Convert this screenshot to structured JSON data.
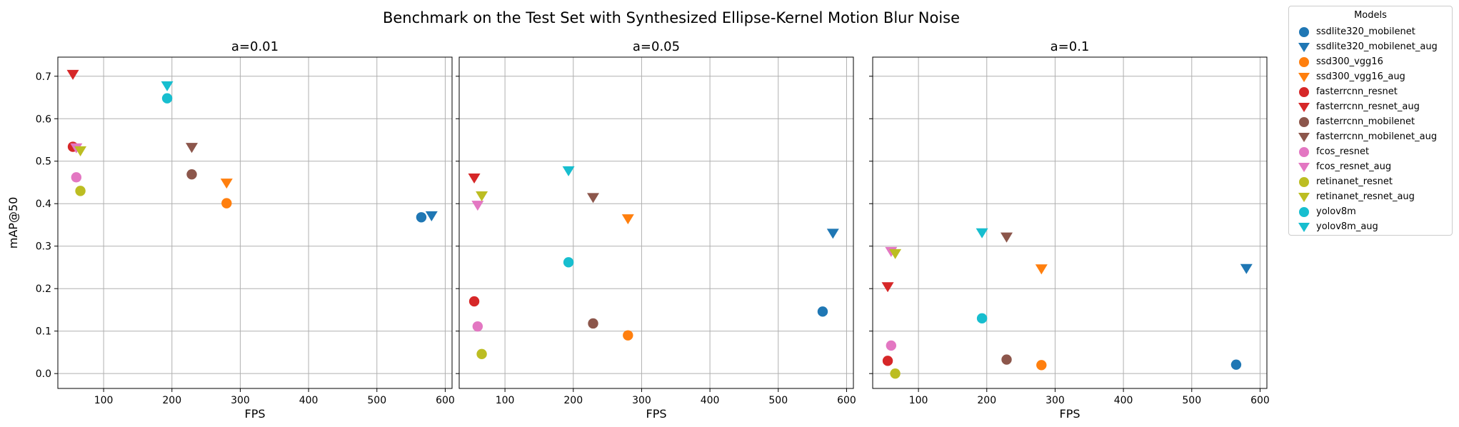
{
  "figure": {
    "title": "Benchmark on the Test Set with Synthesized Ellipse-Kernel Motion Blur Noise"
  },
  "chart_data": [
    {
      "type": "scatter",
      "title": "a=0.01",
      "xlabel": "FPS",
      "ylabel": "mAP@50",
      "xlim": [
        33,
        610
      ],
      "ylim": [
        -0.035,
        0.745
      ],
      "xticks": [
        100,
        200,
        300,
        400,
        500,
        600
      ],
      "yticks": [
        0.0,
        0.1,
        0.2,
        0.3,
        0.4,
        0.5,
        0.6,
        0.7
      ],
      "grid": true,
      "series": [
        {
          "name": "ssdlite320_mobilenet",
          "x": 565,
          "y": 0.368
        },
        {
          "name": "ssdlite320_mobilenet_aug",
          "x": 580,
          "y": 0.372
        },
        {
          "name": "ssd300_vgg16",
          "x": 280,
          "y": 0.401
        },
        {
          "name": "ssd300_vgg16_aug",
          "x": 280,
          "y": 0.449
        },
        {
          "name": "fasterrcnn_resnet",
          "x": 55,
          "y": 0.534
        },
        {
          "name": "fasterrcnn_resnet_aug",
          "x": 55,
          "y": 0.705
        },
        {
          "name": "fasterrcnn_mobilenet",
          "x": 229,
          "y": 0.469
        },
        {
          "name": "fasterrcnn_mobilenet_aug",
          "x": 229,
          "y": 0.533
        },
        {
          "name": "fcos_resnet",
          "x": 60,
          "y": 0.462
        },
        {
          "name": "fcos_resnet_aug",
          "x": 60,
          "y": 0.532
        },
        {
          "name": "retinanet_resnet",
          "x": 66,
          "y": 0.43
        },
        {
          "name": "retinanet_resnet_aug",
          "x": 66,
          "y": 0.525
        },
        {
          "name": "yolov8m",
          "x": 193,
          "y": 0.648
        },
        {
          "name": "yolov8m_aug",
          "x": 193,
          "y": 0.678
        }
      ]
    },
    {
      "type": "scatter",
      "title": "a=0.05",
      "xlabel": "FPS",
      "ylabel": "",
      "xlim": [
        33,
        610
      ],
      "ylim": [
        -0.035,
        0.745
      ],
      "xticks": [
        100,
        200,
        300,
        400,
        500,
        600
      ],
      "yticks": [
        0.0,
        0.1,
        0.2,
        0.3,
        0.4,
        0.5,
        0.6,
        0.7
      ],
      "grid": true,
      "series": [
        {
          "name": "ssdlite320_mobilenet",
          "x": 565,
          "y": 0.146
        },
        {
          "name": "ssdlite320_mobilenet_aug",
          "x": 580,
          "y": 0.331
        },
        {
          "name": "ssd300_vgg16",
          "x": 280,
          "y": 0.09
        },
        {
          "name": "ssd300_vgg16_aug",
          "x": 280,
          "y": 0.365
        },
        {
          "name": "fasterrcnn_resnet",
          "x": 55,
          "y": 0.17
        },
        {
          "name": "fasterrcnn_resnet_aug",
          "x": 55,
          "y": 0.461
        },
        {
          "name": "fasterrcnn_mobilenet",
          "x": 229,
          "y": 0.118
        },
        {
          "name": "fasterrcnn_mobilenet_aug",
          "x": 229,
          "y": 0.415
        },
        {
          "name": "fcos_resnet",
          "x": 60,
          "y": 0.111
        },
        {
          "name": "fcos_resnet_aug",
          "x": 60,
          "y": 0.397
        },
        {
          "name": "retinanet_resnet",
          "x": 66,
          "y": 0.046
        },
        {
          "name": "retinanet_resnet_aug",
          "x": 66,
          "y": 0.419
        },
        {
          "name": "yolov8m",
          "x": 193,
          "y": 0.262
        },
        {
          "name": "yolov8m_aug",
          "x": 193,
          "y": 0.478
        }
      ]
    },
    {
      "type": "scatter",
      "title": "a=0.1",
      "xlabel": "FPS",
      "ylabel": "",
      "xlim": [
        33,
        610
      ],
      "ylim": [
        -0.035,
        0.745
      ],
      "xticks": [
        100,
        200,
        300,
        400,
        500,
        600
      ],
      "yticks": [
        0.0,
        0.1,
        0.2,
        0.3,
        0.4,
        0.5,
        0.6,
        0.7
      ],
      "grid": true,
      "series": [
        {
          "name": "ssdlite320_mobilenet",
          "x": 565,
          "y": 0.021
        },
        {
          "name": "ssdlite320_mobilenet_aug",
          "x": 580,
          "y": 0.248
        },
        {
          "name": "ssd300_vgg16",
          "x": 280,
          "y": 0.02
        },
        {
          "name": "ssd300_vgg16_aug",
          "x": 280,
          "y": 0.247
        },
        {
          "name": "fasterrcnn_resnet",
          "x": 55,
          "y": 0.03
        },
        {
          "name": "fasterrcnn_resnet_aug",
          "x": 55,
          "y": 0.205
        },
        {
          "name": "fasterrcnn_mobilenet",
          "x": 229,
          "y": 0.033
        },
        {
          "name": "fasterrcnn_mobilenet_aug",
          "x": 229,
          "y": 0.322
        },
        {
          "name": "fcos_resnet",
          "x": 60,
          "y": 0.066
        },
        {
          "name": "fcos_resnet_aug",
          "x": 60,
          "y": 0.288
        },
        {
          "name": "retinanet_resnet",
          "x": 66,
          "y": 0.0
        },
        {
          "name": "retinanet_resnet_aug",
          "x": 66,
          "y": 0.283
        },
        {
          "name": "yolov8m",
          "x": 193,
          "y": 0.13
        },
        {
          "name": "yolov8m_aug",
          "x": 193,
          "y": 0.332
        }
      ]
    }
  ],
  "legend": {
    "title": "Models",
    "placement": "outside-right-top",
    "entries": [
      {
        "name": "ssdlite320_mobilenet",
        "color": "#1f77b4",
        "marker": "circle"
      },
      {
        "name": "ssdlite320_mobilenet_aug",
        "color": "#1f77b4",
        "marker": "triangle-down"
      },
      {
        "name": "ssd300_vgg16",
        "color": "#ff7f0e",
        "marker": "circle"
      },
      {
        "name": "ssd300_vgg16_aug",
        "color": "#ff7f0e",
        "marker": "triangle-down"
      },
      {
        "name": "fasterrcnn_resnet",
        "color": "#d62728",
        "marker": "circle"
      },
      {
        "name": "fasterrcnn_resnet_aug",
        "color": "#d62728",
        "marker": "triangle-down"
      },
      {
        "name": "fasterrcnn_mobilenet",
        "color": "#8c564b",
        "marker": "circle"
      },
      {
        "name": "fasterrcnn_mobilenet_aug",
        "color": "#8c564b",
        "marker": "triangle-down"
      },
      {
        "name": "fcos_resnet",
        "color": "#e377c2",
        "marker": "circle"
      },
      {
        "name": "fcos_resnet_aug",
        "color": "#e377c2",
        "marker": "triangle-down"
      },
      {
        "name": "retinanet_resnet",
        "color": "#bcbd22",
        "marker": "circle"
      },
      {
        "name": "retinanet_resnet_aug",
        "color": "#bcbd22",
        "marker": "triangle-down"
      },
      {
        "name": "yolov8m",
        "color": "#17becf",
        "marker": "circle"
      },
      {
        "name": "yolov8m_aug",
        "color": "#17becf",
        "marker": "triangle-down"
      }
    ]
  }
}
